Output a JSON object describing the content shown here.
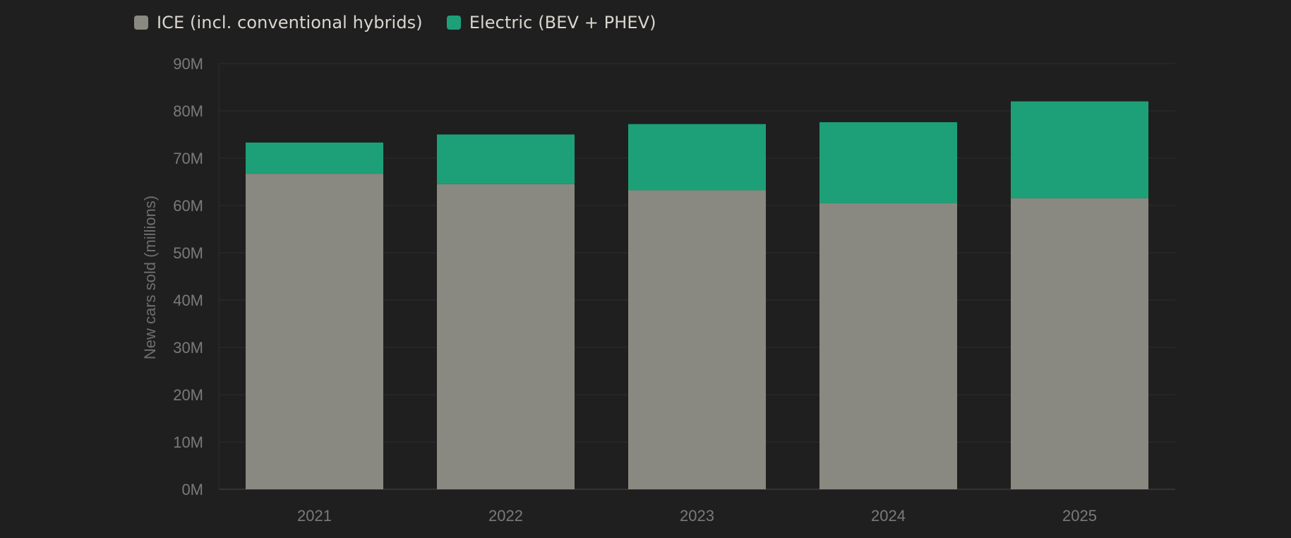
{
  "chart_data": {
    "type": "bar",
    "stacked": true,
    "categories": [
      "2021",
      "2022",
      "2023",
      "2024",
      "2025"
    ],
    "series": [
      {
        "name": "ICE (incl. conventional hybrids)",
        "values": [
          66.7,
          64.5,
          63.2,
          60.5,
          61.5
        ],
        "color": "#8a8981"
      },
      {
        "name": "Electric (BEV + PHEV)",
        "values": [
          6.6,
          10.5,
          14.0,
          17.1,
          20.5
        ],
        "color": "#1da077"
      }
    ],
    "ylabel": "New cars sold (millions)",
    "ylim": [
      0,
      90
    ],
    "yticks": [
      0,
      10,
      20,
      30,
      40,
      50,
      60,
      70,
      80,
      90
    ],
    "ytick_labels": [
      "0M",
      "10M",
      "20M",
      "30M",
      "40M",
      "50M",
      "60M",
      "70M",
      "80M",
      "90M"
    ],
    "grid": true,
    "legend_position": "top-left",
    "colors": {
      "background": "#1f1f1f",
      "grid": "#2d2d2d",
      "axis": "#3a3a3a",
      "tick_text": "#7a7a7a",
      "legend_text": "#d9d6cf"
    }
  }
}
